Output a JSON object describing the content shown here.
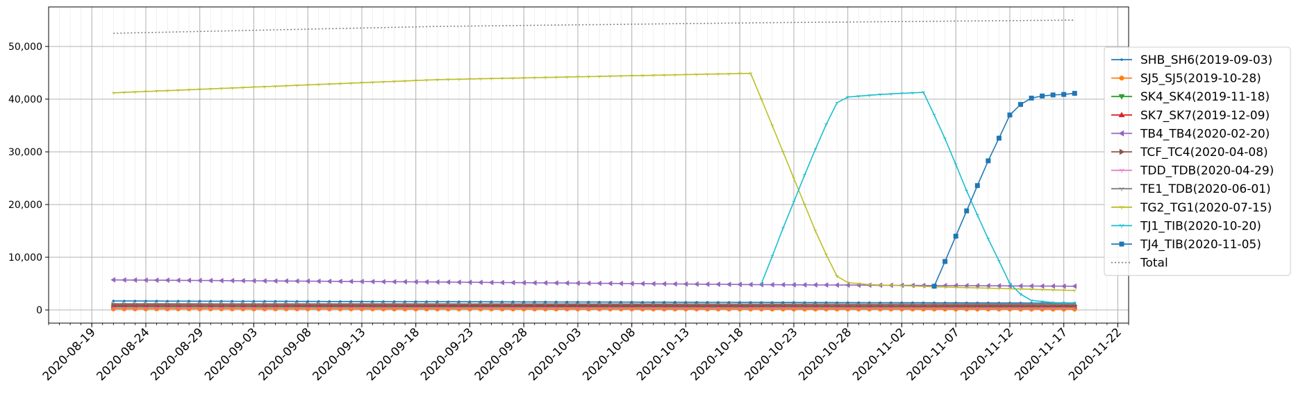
{
  "chart_data": {
    "type": "line",
    "title": "",
    "xlabel": "",
    "ylabel": "",
    "x_start": "2020-08-21",
    "x_end": "2020-11-18",
    "xlim": [
      "2020-08-15",
      "2020-11-23"
    ],
    "ylim": [
      -2500,
      57500
    ],
    "yticks": [
      0,
      10000,
      20000,
      30000,
      40000,
      50000
    ],
    "ytick_labels": [
      "0",
      "10,000",
      "20,000",
      "30,000",
      "40,000",
      "50,000"
    ],
    "xtick_labels": [
      "2020-08-19",
      "2020-08-24",
      "2020-08-29",
      "2020-09-03",
      "2020-09-08",
      "2020-09-13",
      "2020-09-18",
      "2020-09-23",
      "2020-09-28",
      "2020-10-03",
      "2020-10-08",
      "2020-10-13",
      "2020-10-18",
      "2020-10-23",
      "2020-10-28",
      "2020-11-02",
      "2020-11-07",
      "2020-11-12",
      "2020-11-17",
      "2020-11-22"
    ],
    "grid": true,
    "legend_position": "right",
    "series": [
      {
        "name": "SHB_SH6(2019-09-03)",
        "color": "#1f77b4",
        "marker": "dot",
        "points": [
          [
            "2020-08-21",
            1700
          ],
          [
            "2020-11-18",
            1300
          ]
        ]
      },
      {
        "name": "SJ5_SJ5(2019-10-28)",
        "color": "#ff7f0e",
        "marker": "circle",
        "points": [
          [
            "2020-08-21",
            200
          ],
          [
            "2020-11-18",
            150
          ]
        ]
      },
      {
        "name": "SK4_SK4(2019-11-18)",
        "color": "#2ca02c",
        "marker": "triangle-down",
        "points": [
          [
            "2020-08-21",
            600
          ],
          [
            "2020-11-18",
            500
          ]
        ]
      },
      {
        "name": "SK7_SK7(2019-12-09)",
        "color": "#d62728",
        "marker": "triangle-up",
        "points": [
          [
            "2020-08-21",
            800
          ],
          [
            "2020-11-18",
            700
          ]
        ]
      },
      {
        "name": "TB4_TB4(2020-02-20)",
        "color": "#9467bd",
        "marker": "triangle-left",
        "points": [
          [
            "2020-08-21",
            5700
          ],
          [
            "2020-09-20",
            5300
          ],
          [
            "2020-10-20",
            4800
          ],
          [
            "2020-11-18",
            4500
          ]
        ]
      },
      {
        "name": "TCF_TC4(2020-04-08)",
        "color": "#8c564b",
        "marker": "triangle-right",
        "points": [
          [
            "2020-08-21",
            1000
          ],
          [
            "2020-11-18",
            900
          ]
        ]
      },
      {
        "name": "TDD_TDB(2020-04-29)",
        "color": "#e377c2",
        "marker": "tri",
        "points": [
          [
            "2020-08-21",
            400
          ],
          [
            "2020-11-18",
            350
          ]
        ]
      },
      {
        "name": "TE1_TDB(2020-06-01)",
        "color": "#7f7f7f",
        "marker": "tri",
        "points": [
          [
            "2020-08-21",
            1200
          ],
          [
            "2020-11-18",
            1100
          ]
        ]
      },
      {
        "name": "TG2_TG1(2020-07-15)",
        "color": "#bcbd22",
        "marker": "tri",
        "points": [
          [
            "2020-08-21",
            41200
          ],
          [
            "2020-09-20",
            43700
          ],
          [
            "2020-10-19",
            44900
          ],
          [
            "2020-10-20",
            40000
          ],
          [
            "2020-10-21",
            35000
          ],
          [
            "2020-10-22",
            30000
          ],
          [
            "2020-10-23",
            25000
          ],
          [
            "2020-10-24",
            20000
          ],
          [
            "2020-10-25",
            15000
          ],
          [
            "2020-10-26",
            10500
          ],
          [
            "2020-10-27",
            6400
          ],
          [
            "2020-10-28",
            5200
          ],
          [
            "2020-10-30",
            4800
          ],
          [
            "2020-11-05",
            4400
          ],
          [
            "2020-11-18",
            3700
          ]
        ]
      },
      {
        "name": "TJ1_TIB(2020-10-20)",
        "color": "#17becf",
        "marker": "tri",
        "points": [
          [
            "2020-10-20",
            5000
          ],
          [
            "2020-10-21",
            10200
          ],
          [
            "2020-10-22",
            15500
          ],
          [
            "2020-10-23",
            20500
          ],
          [
            "2020-10-24",
            25600
          ],
          [
            "2020-10-25",
            30500
          ],
          [
            "2020-10-26",
            35200
          ],
          [
            "2020-10-27",
            39300
          ],
          [
            "2020-10-28",
            40400
          ],
          [
            "2020-10-31",
            40900
          ],
          [
            "2020-11-04",
            41300
          ],
          [
            "2020-11-05",
            37000
          ],
          [
            "2020-11-06",
            32500
          ],
          [
            "2020-11-07",
            27600
          ],
          [
            "2020-11-08",
            22600
          ],
          [
            "2020-11-09",
            18000
          ],
          [
            "2020-11-10",
            13500
          ],
          [
            "2020-11-11",
            9300
          ],
          [
            "2020-11-12",
            5000
          ],
          [
            "2020-11-13",
            3000
          ],
          [
            "2020-11-14",
            1800
          ],
          [
            "2020-11-16",
            1400
          ],
          [
            "2020-11-18",
            1300
          ]
        ]
      },
      {
        "name": "TJ4_TIB(2020-11-05)",
        "color": "#1f77b4",
        "marker": "square",
        "points": [
          [
            "2020-11-05",
            4500
          ],
          [
            "2020-11-06",
            9200
          ],
          [
            "2020-11-07",
            14000
          ],
          [
            "2020-11-08",
            18800
          ],
          [
            "2020-11-09",
            23600
          ],
          [
            "2020-11-10",
            28300
          ],
          [
            "2020-11-11",
            32600
          ],
          [
            "2020-11-12",
            37000
          ],
          [
            "2020-11-13",
            39000
          ],
          [
            "2020-11-14",
            40200
          ],
          [
            "2020-11-15",
            40600
          ],
          [
            "2020-11-16",
            40800
          ],
          [
            "2020-11-17",
            40900
          ],
          [
            "2020-11-18",
            41100
          ]
        ]
      },
      {
        "name": "Total",
        "color": "#7f7f7f",
        "marker": "none",
        "dashed": true,
        "points": [
          [
            "2020-08-21",
            52500
          ],
          [
            "2020-09-20",
            53800
          ],
          [
            "2020-10-20",
            54500
          ],
          [
            "2020-11-18",
            55000
          ]
        ]
      }
    ]
  }
}
